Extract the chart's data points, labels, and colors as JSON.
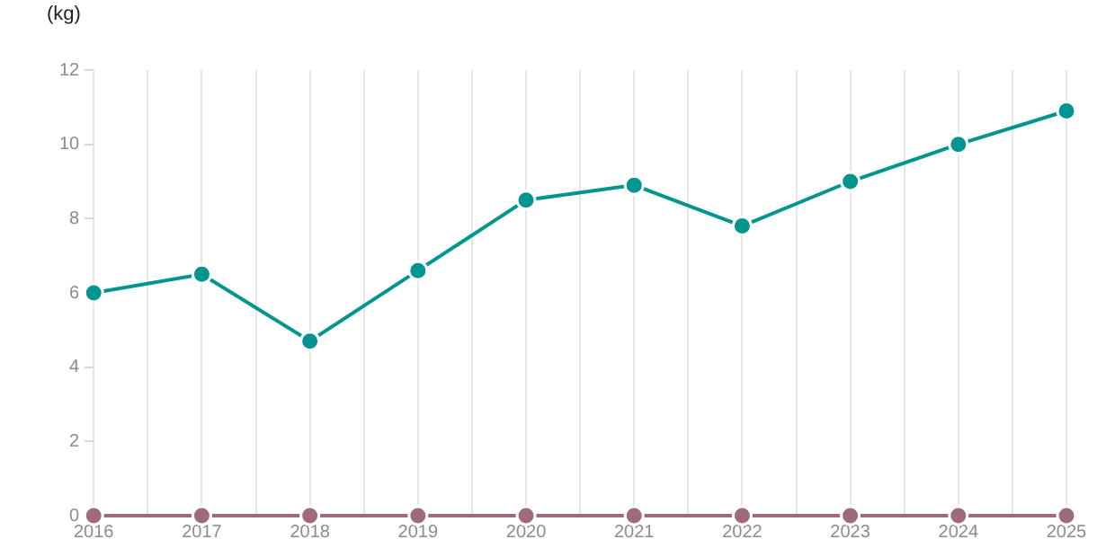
{
  "chart_data": {
    "type": "line",
    "ylabel": "(kg)",
    "x": [
      2016,
      2017,
      2018,
      2019,
      2020,
      2021,
      2022,
      2023,
      2024,
      2025
    ],
    "series": [
      {
        "color": "#00968f",
        "values": [
          6.0,
          6.5,
          4.7,
          6.6,
          8.5,
          8.9,
          7.8,
          9.0,
          10.0,
          10.9
        ]
      },
      {
        "color": "#9e6b78",
        "values": [
          0,
          0,
          0,
          0,
          0,
          0,
          0,
          0,
          0,
          0
        ]
      }
    ],
    "xlim": [
      2016,
      2025
    ],
    "xticks": [
      2016,
      {
        "value": 2016.5,
        "label": null
      },
      2017,
      {
        "value": 2017.5,
        "label": null
      },
      2018,
      {
        "value": 2018.5,
        "label": null
      },
      2019,
      {
        "value": 2019.5,
        "label": null
      },
      2020,
      {
        "value": 2020.5,
        "label": null
      },
      2021,
      {
        "value": 2021.5,
        "label": null
      },
      2022,
      {
        "value": 2022.5,
        "label": null
      },
      2023,
      {
        "value": 2023.5,
        "label": null
      },
      2024,
      {
        "value": 2024.5,
        "label": null
      },
      2025
    ],
    "ylim": [
      0,
      12
    ],
    "yticks": [
      0,
      2,
      4,
      6,
      8,
      10,
      12
    ],
    "grid": "x",
    "marker": "circle",
    "line_style": "solid",
    "legend": false
  }
}
